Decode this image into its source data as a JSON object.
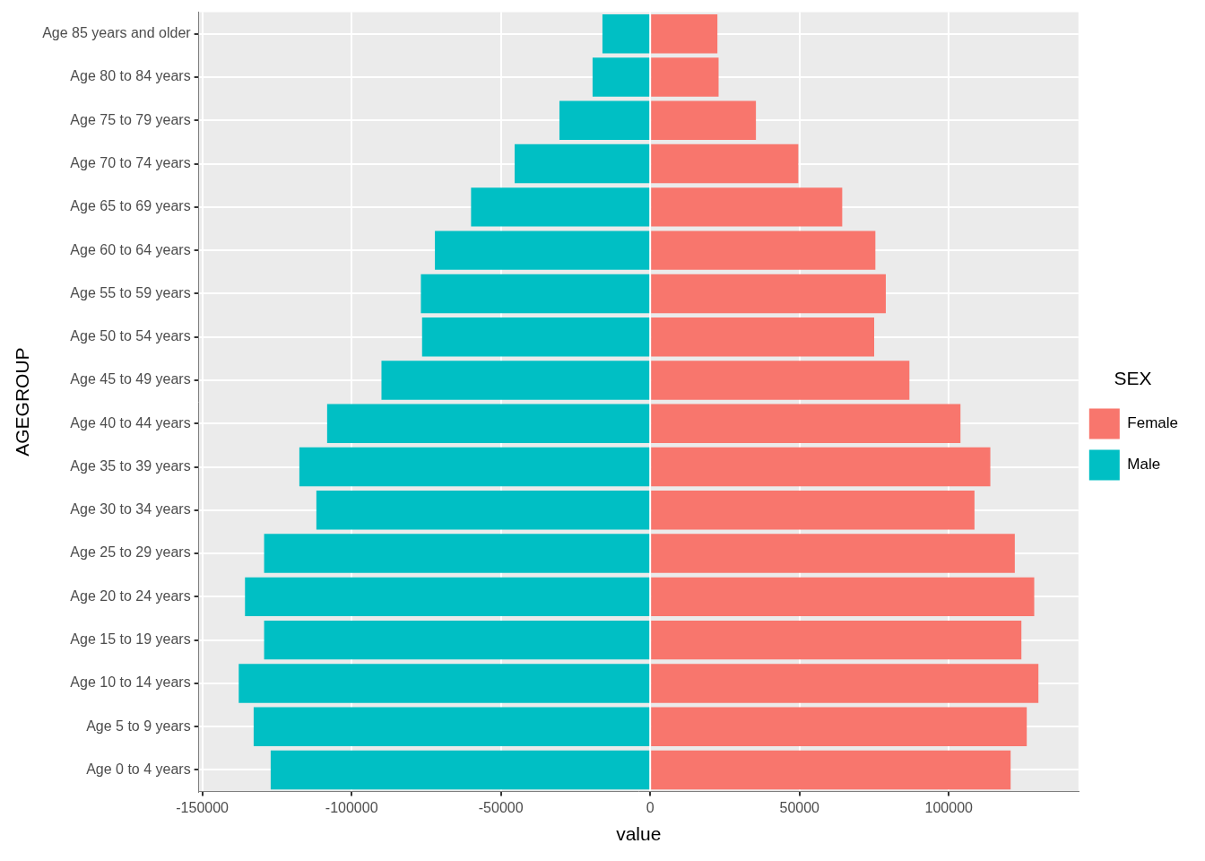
{
  "chart_data": {
    "type": "bar",
    "orientation": "horizontal",
    "stacked": true,
    "grid": true,
    "legend": "right",
    "legend_title": "SEX",
    "x_label": "value",
    "y_label": "AGEGROUP",
    "categories": [
      "Age 0 to 4 years",
      "Age 5 to 9 years",
      "Age 10 to 14 years",
      "Age 15 to 19 years",
      "Age 20 to 24 years",
      "Age 25 to 29 years",
      "Age 30 to 34 years",
      "Age 35 to 39 years",
      "Age 40 to 44 years",
      "Age 45 to 49 years",
      "Age 50 to 54 years",
      "Age 55 to 59 years",
      "Age 60 to 64 years",
      "Age 65 to 69 years",
      "Age 70 to 74 years",
      "Age 75 to 79 years",
      "Age 80 to 84 years",
      "Age 85 years and older"
    ],
    "series": [
      {
        "name": "Female",
        "color": "#F8766D",
        "values": [
          120700,
          126100,
          130000,
          124300,
          128600,
          122100,
          108600,
          113900,
          103900,
          86800,
          75000,
          78900,
          75400,
          64300,
          49600,
          35400,
          22900,
          22500
        ]
      },
      {
        "name": "Male",
        "color": "#00BFC4",
        "values": [
          -127100,
          -132800,
          -137800,
          -129300,
          -135700,
          -129300,
          -111800,
          -117500,
          -108200,
          -90000,
          -76400,
          -76800,
          -72100,
          -60000,
          -45400,
          -30400,
          -19300,
          -16000
        ]
      }
    ],
    "xlim": [
      -151200,
      143400
    ],
    "xticks": [
      -150000,
      -100000,
      -50000,
      0,
      50000,
      100000
    ]
  }
}
